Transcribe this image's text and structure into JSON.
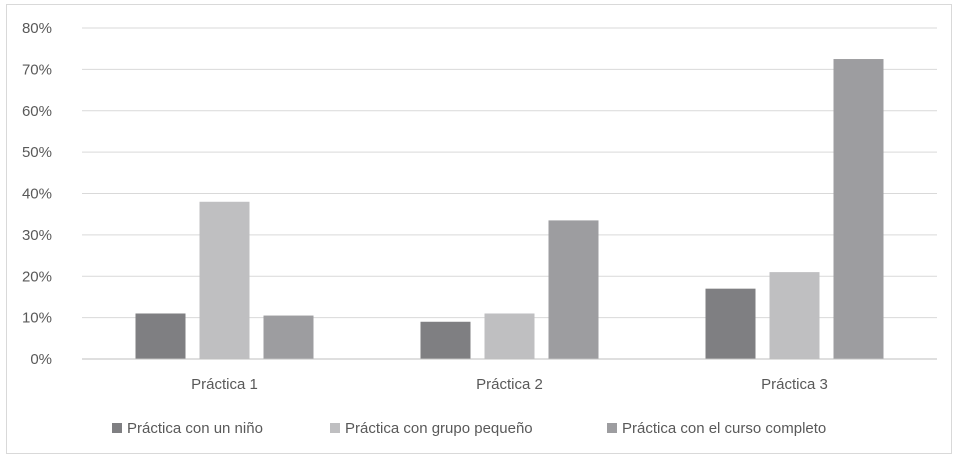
{
  "chart_data": {
    "type": "bar",
    "title": "",
    "xlabel": "",
    "ylabel": "",
    "categories": [
      "Práctica 1",
      "Práctica 2",
      "Práctica 3"
    ],
    "series": [
      {
        "name": "Práctica con un niño",
        "values": [
          11,
          9,
          17
        ],
        "color": "#7f7f82"
      },
      {
        "name": "Práctica con grupo pequeño",
        "values": [
          38,
          11,
          21
        ],
        "color": "#bfbfc1"
      },
      {
        "name": "Práctica con el curso completo",
        "values": [
          10.5,
          33.5,
          72.5
        ],
        "color": "#9d9da0"
      }
    ],
    "ylim": [
      0,
      80
    ],
    "yticks": [
      "0%",
      "10%",
      "20%",
      "30%",
      "40%",
      "50%",
      "60%",
      "70%",
      "80%"
    ],
    "grid": true,
    "legend_position": "bottom"
  }
}
